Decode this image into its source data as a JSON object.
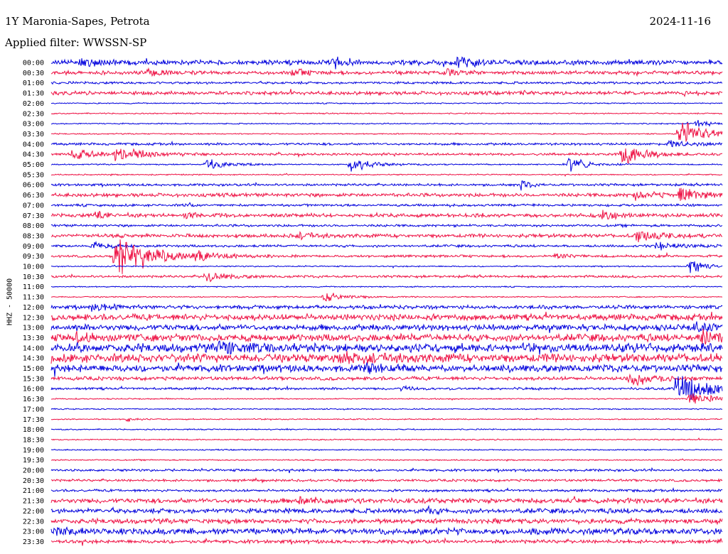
{
  "header": {
    "station": "1Y Maronia-Sapes, Petrota",
    "date": "2024-11-16",
    "filter": "Applied filter: WWSSN-SP"
  },
  "chart_data": {
    "type": "line",
    "title": "1Y Maronia-Sapes, Petrota",
    "ylabel": "HHZ - 50000",
    "row_labels": [
      "00:00",
      "00:30",
      "01:00",
      "01:30",
      "02:00",
      "02:30",
      "03:00",
      "03:30",
      "04:00",
      "04:30",
      "05:00",
      "05:30",
      "06:00",
      "06:30",
      "07:00",
      "07:30",
      "08:00",
      "08:30",
      "09:00",
      "09:30",
      "10:00",
      "10:30",
      "11:00",
      "11:30",
      "12:00",
      "12:30",
      "13:00",
      "13:30",
      "14:00",
      "14:30",
      "15:00",
      "15:30",
      "16:00",
      "16:30",
      "17:00",
      "17:30",
      "18:00",
      "18:30",
      "19:00",
      "19:30",
      "20:00",
      "20:30",
      "21:00",
      "21:30",
      "22:00",
      "22:30",
      "23:00",
      "23:30"
    ],
    "series_colors": [
      "#0000dd",
      "#ee1144"
    ],
    "row_noise": [
      4,
      3,
      2,
      3,
      1,
      1,
      1,
      1,
      2,
      2,
      1,
      1,
      2,
      3,
      2,
      3,
      2,
      3,
      2,
      2,
      1,
      2,
      1,
      1,
      3,
      5,
      5,
      6,
      7,
      7,
      6,
      3,
      2,
      1,
      1,
      1,
      1,
      1,
      1,
      1,
      2,
      2,
      2,
      4,
      4,
      4,
      5,
      3
    ],
    "events": [
      {
        "row": 0,
        "x": 0.045,
        "amp": 10,
        "dur": 0.02
      },
      {
        "row": 0,
        "x": 0.42,
        "amp": 12,
        "dur": 0.01
      },
      {
        "row": 0,
        "x": 0.604,
        "amp": 11,
        "dur": 0.02
      },
      {
        "row": 1,
        "x": 0.142,
        "amp": 7,
        "dur": 0.02
      },
      {
        "row": 1,
        "x": 0.36,
        "amp": 6,
        "dur": 0.02
      },
      {
        "row": 1,
        "x": 0.59,
        "amp": 6,
        "dur": 0.02
      },
      {
        "row": 3,
        "x": 0.7,
        "amp": 5,
        "dur": 0.01
      },
      {
        "row": 6,
        "x": 0.96,
        "amp": 8,
        "dur": 0.02
      },
      {
        "row": 7,
        "x": 0.935,
        "amp": 22,
        "dur": 0.04
      },
      {
        "row": 8,
        "x": 0.92,
        "amp": 6,
        "dur": 0.03
      },
      {
        "row": 9,
        "x": 0.03,
        "amp": 11,
        "dur": 0.03
      },
      {
        "row": 9,
        "x": 0.095,
        "amp": 13,
        "dur": 0.04
      },
      {
        "row": 9,
        "x": 0.85,
        "amp": 21,
        "dur": 0.03
      },
      {
        "row": 10,
        "x": 0.23,
        "amp": 10,
        "dur": 0.03
      },
      {
        "row": 10,
        "x": 0.445,
        "amp": 15,
        "dur": 0.03
      },
      {
        "row": 10,
        "x": 0.77,
        "amp": 12,
        "dur": 0.03
      },
      {
        "row": 12,
        "x": 0.7,
        "amp": 11,
        "dur": 0.01
      },
      {
        "row": 13,
        "x": 0.87,
        "amp": 9,
        "dur": 0.02
      },
      {
        "row": 13,
        "x": 0.935,
        "amp": 11,
        "dur": 0.03
      },
      {
        "row": 14,
        "x": 0.2,
        "amp": 6,
        "dur": 0.01
      },
      {
        "row": 15,
        "x": 0.065,
        "amp": 6,
        "dur": 0.02
      },
      {
        "row": 15,
        "x": 0.2,
        "amp": 6,
        "dur": 0.01
      },
      {
        "row": 15,
        "x": 0.82,
        "amp": 8,
        "dur": 0.02
      },
      {
        "row": 17,
        "x": 0.37,
        "amp": 5,
        "dur": 0.02
      },
      {
        "row": 17,
        "x": 0.87,
        "amp": 9,
        "dur": 0.04
      },
      {
        "row": 18,
        "x": 0.06,
        "amp": 6,
        "dur": 0.03
      },
      {
        "row": 18,
        "x": 0.9,
        "amp": 6,
        "dur": 0.04
      },
      {
        "row": 19,
        "x": 0.095,
        "amp": 40,
        "dur": 0.05
      },
      {
        "row": 19,
        "x": 0.215,
        "amp": 8,
        "dur": 0.03
      },
      {
        "row": 19,
        "x": 0.75,
        "amp": 5,
        "dur": 0.02
      },
      {
        "row": 20,
        "x": 0.95,
        "amp": 15,
        "dur": 0.02
      },
      {
        "row": 21,
        "x": 0.23,
        "amp": 9,
        "dur": 0.03
      },
      {
        "row": 23,
        "x": 0.405,
        "amp": 9,
        "dur": 0.03
      },
      {
        "row": 24,
        "x": 0.06,
        "amp": 7,
        "dur": 0.03
      },
      {
        "row": 26,
        "x": 0.96,
        "amp": 9,
        "dur": 0.02
      },
      {
        "row": 27,
        "x": 0.035,
        "amp": 8,
        "dur": 0.02
      },
      {
        "row": 27,
        "x": 0.97,
        "amp": 12,
        "dur": 0.02
      },
      {
        "row": 28,
        "x": 0.25,
        "amp": 10,
        "dur": 0.03
      },
      {
        "row": 29,
        "x": 0.43,
        "amp": 8,
        "dur": 0.04
      },
      {
        "row": 30,
        "x": 0.47,
        "amp": 7,
        "dur": 0.02
      },
      {
        "row": 31,
        "x": 0.86,
        "amp": 15,
        "dur": 0.03
      },
      {
        "row": 32,
        "x": 0.93,
        "amp": 25,
        "dur": 0.06
      },
      {
        "row": 32,
        "x": 0.52,
        "amp": 5,
        "dur": 0.02
      },
      {
        "row": 33,
        "x": 0.95,
        "amp": 11,
        "dur": 0.04
      },
      {
        "row": 35,
        "x": 0.11,
        "amp": 6,
        "dur": 0.01
      },
      {
        "row": 43,
        "x": 0.37,
        "amp": 6,
        "dur": 0.03
      },
      {
        "row": 44,
        "x": 0.56,
        "amp": 6,
        "dur": 0.01
      },
      {
        "row": 46,
        "x": 0.005,
        "amp": 9,
        "dur": 0.02
      }
    ]
  }
}
